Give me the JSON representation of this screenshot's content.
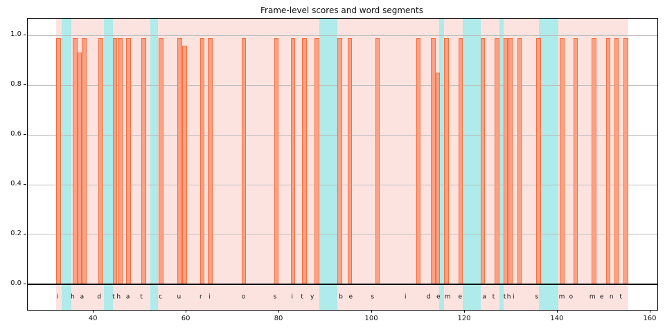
{
  "title": "Frame-level scores and word segments",
  "chart_data": {
    "type": "bar",
    "title": "Frame-level scores and word segments",
    "transcript": "i had that curiosity beside me at this moment",
    "xlabel": "",
    "ylabel": "",
    "xlim": [
      25.8,
      161.5
    ],
    "ylim": [
      -0.103,
      1.067
    ],
    "x_ticks": [
      40,
      60,
      80,
      100,
      120,
      140,
      160
    ],
    "y_ticks": [
      0.0,
      0.2,
      0.4,
      0.6,
      0.8,
      1.0
    ],
    "y_tick_labels": [
      "0.0",
      "0.2",
      "0.4",
      "0.6",
      "0.8",
      "1.0"
    ],
    "grid": "y",
    "legend": "none",
    "bar_width": 1.0,
    "char_label_y": -0.054,
    "colors": {
      "bar_fill": "#fda184",
      "bar_edge": "#f5713e",
      "word_span": "#fde3e0",
      "gap_span": "#aeebea",
      "grid": "#bdbdbd",
      "baseline": "#000000",
      "text": "#111111"
    },
    "bars": [
      {
        "x": 32.4,
        "s": 0.99
      },
      {
        "x": 36.0,
        "s": 0.99
      },
      {
        "x": 37.0,
        "s": 0.93
      },
      {
        "x": 38.0,
        "s": 0.99
      },
      {
        "x": 41.6,
        "s": 0.99
      },
      {
        "x": 44.6,
        "s": 0.99
      },
      {
        "x": 45.7,
        "s": 0.99
      },
      {
        "x": 47.5,
        "s": 0.99
      },
      {
        "x": 50.8,
        "s": 0.99
      },
      {
        "x": 54.5,
        "s": 0.99
      },
      {
        "x": 58.6,
        "s": 0.99
      },
      {
        "x": 59.6,
        "s": 0.96
      },
      {
        "x": 63.4,
        "s": 0.99
      },
      {
        "x": 65.1,
        "s": 0.99
      },
      {
        "x": 72.4,
        "s": 0.99
      },
      {
        "x": 79.4,
        "s": 0.99
      },
      {
        "x": 83.0,
        "s": 0.99
      },
      {
        "x": 85.4,
        "s": 0.99
      },
      {
        "x": 88.1,
        "s": 0.99
      },
      {
        "x": 93.1,
        "s": 0.99
      },
      {
        "x": 95.2,
        "s": 0.99
      },
      {
        "x": 101.2,
        "s": 0.99
      },
      {
        "x": 110.0,
        "s": 0.99
      },
      {
        "x": 113.2,
        "s": 0.99
      },
      {
        "x": 114.2,
        "s": 0.85
      },
      {
        "x": 116.0,
        "s": 0.99
      },
      {
        "x": 119.1,
        "s": 0.99
      },
      {
        "x": 123.9,
        "s": 0.99
      },
      {
        "x": 126.9,
        "s": 0.99
      },
      {
        "x": 128.8,
        "s": 0.99
      },
      {
        "x": 129.8,
        "s": 0.99
      },
      {
        "x": 131.8,
        "s": 0.99
      },
      {
        "x": 135.9,
        "s": 0.99
      },
      {
        "x": 141.0,
        "s": 0.99
      },
      {
        "x": 143.9,
        "s": 0.99
      },
      {
        "x": 147.8,
        "s": 0.99
      },
      {
        "x": 150.9,
        "s": 0.99
      },
      {
        "x": 152.7,
        "s": 0.99
      },
      {
        "x": 154.7,
        "s": 0.99
      }
    ],
    "words": [
      {
        "word": "i",
        "start": 31.9,
        "end": 33.15,
        "letters": [
          [
            "i",
            32.2
          ]
        ]
      },
      {
        "word": "had",
        "start": 35.2,
        "end": 42.2,
        "letters": [
          [
            "h",
            35.5
          ],
          [
            "a",
            37.5
          ],
          [
            "d",
            41.2
          ]
        ]
      },
      {
        "word": "that",
        "start": 44.1,
        "end": 52.2,
        "letters": [
          [
            "t",
            44.3
          ],
          [
            "h",
            45.4
          ],
          [
            "a",
            47.4
          ],
          [
            "t",
            50.3
          ]
        ]
      },
      {
        "word": "curiosity",
        "start": 53.8,
        "end": 88.7,
        "letters": [
          [
            "c",
            54.4
          ],
          [
            "u",
            58.4
          ],
          [
            "r",
            63.1
          ],
          [
            "i",
            65.0
          ],
          [
            "o",
            72.3
          ],
          [
            "s",
            79.1
          ],
          [
            "i",
            82.8
          ],
          [
            "t",
            84.9
          ],
          [
            "y",
            87.1
          ]
        ]
      },
      {
        "word": "beside",
        "start": 92.6,
        "end": 114.5,
        "letters": [
          [
            "b",
            93.3
          ],
          [
            "e",
            95.4
          ],
          [
            "s",
            100.1
          ],
          [
            "i",
            107.2
          ],
          [
            "d",
            112.2
          ],
          [
            "e",
            114.3
          ]
        ]
      },
      {
        "word": "me",
        "start": 115.5,
        "end": 119.5,
        "letters": [
          [
            "m",
            116.3
          ],
          [
            "e",
            119.0
          ]
        ]
      },
      {
        "word": "at",
        "start": 123.4,
        "end": 127.5,
        "letters": [
          [
            "a",
            124.2
          ],
          [
            "t",
            126.2
          ]
        ]
      },
      {
        "word": "this",
        "start": 128.4,
        "end": 135.9,
        "letters": [
          [
            "t",
            128.6
          ],
          [
            "h",
            129.5
          ],
          [
            "i",
            130.5
          ],
          [
            "s",
            135.5
          ]
        ]
      },
      {
        "word": "moment",
        "start": 140.1,
        "end": 155.3,
        "letters": [
          [
            "m",
            140.9
          ],
          [
            "o",
            142.9
          ],
          [
            "m",
            147.5
          ],
          [
            "e",
            149.5
          ],
          [
            "n",
            151.6
          ],
          [
            "t",
            153.6
          ]
        ]
      }
    ],
    "gaps": [
      {
        "start": 33.15,
        "end": 35.2
      },
      {
        "start": 42.2,
        "end": 44.1
      },
      {
        "start": 52.2,
        "end": 53.8
      },
      {
        "start": 88.7,
        "end": 92.6
      },
      {
        "start": 114.5,
        "end": 115.5
      },
      {
        "start": 119.5,
        "end": 123.4
      },
      {
        "start": 127.5,
        "end": 128.4
      },
      {
        "start": 135.9,
        "end": 140.1
      }
    ]
  }
}
